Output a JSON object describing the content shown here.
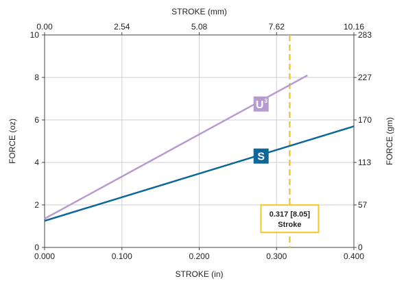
{
  "chart_data": {
    "type": "line",
    "xlabel_bottom": "STROKE (in)",
    "xlabel_top": "STROKE (mm)",
    "ylabel_left": "FORCE (oz)",
    "ylabel_right": "FORCE (gm)",
    "xlim": [
      0,
      0.4
    ],
    "ylim": [
      0,
      10
    ],
    "x_ticks_bottom": [
      "0.000",
      "0.100",
      "0.200",
      "0.300",
      "0.400"
    ],
    "x_ticks_top": [
      "0.00",
      "2.54",
      "5.08",
      "7.62",
      "10.16"
    ],
    "y_ticks_left": [
      "0",
      "2",
      "4",
      "6",
      "8",
      "10"
    ],
    "y_ticks_right": [
      "0",
      "57",
      "113",
      "170",
      "227",
      "283"
    ],
    "grid": true,
    "series": [
      {
        "name": "U",
        "superscript": "3",
        "color": "#b79bcf",
        "x": [
          0.0,
          0.34
        ],
        "y": [
          1.35,
          8.1
        ],
        "label_at": {
          "x": 0.28,
          "y": 6.75
        }
      },
      {
        "name": "S",
        "color": "#0d6799",
        "x": [
          0.0,
          0.4
        ],
        "y": [
          1.25,
          5.7
        ],
        "label_at": {
          "x": 0.28,
          "y": 4.3
        }
      }
    ],
    "annotations": [
      {
        "type": "vline",
        "x": 0.317,
        "color": "#f6c62a",
        "style": "dashed",
        "label_line1": "0.317 [8.05]",
        "label_line2": "Stroke",
        "box_center_y": 1.35
      }
    ]
  }
}
